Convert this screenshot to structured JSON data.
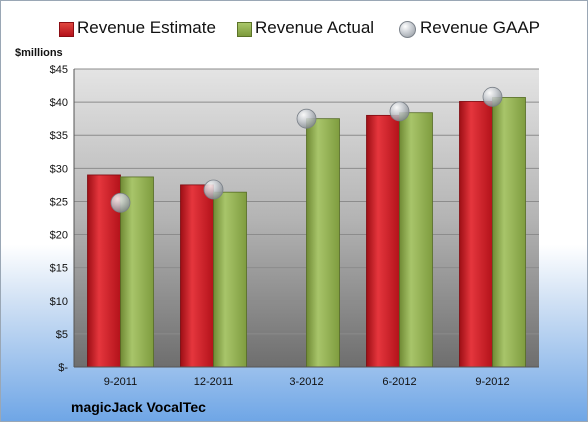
{
  "legend": {
    "estimate_label": "Revenue Estimate",
    "actual_label": "Revenue Actual",
    "gaap_label": "Revenue GAAP"
  },
  "unit_label": "$millions",
  "company": "magicJack VocalTec",
  "colors": {
    "estimate": "#c8161e",
    "actual": "#8aa64a",
    "gaap": "#b9bec4"
  },
  "chart_data": {
    "type": "bar",
    "categories": [
      "9-2011",
      "12-2011",
      "3-2012",
      "6-2012",
      "9-2012"
    ],
    "series": [
      {
        "name": "Revenue Estimate",
        "values": [
          29.0,
          27.5,
          null,
          38.0,
          40.1
        ]
      },
      {
        "name": "Revenue Actual",
        "values": [
          28.7,
          26.4,
          37.5,
          38.4,
          40.7
        ]
      },
      {
        "name": "Revenue GAAP",
        "values": [
          24.8,
          26.8,
          37.5,
          38.6,
          40.8
        ]
      }
    ],
    "ylabel": "$millions",
    "ylim": [
      0,
      45
    ],
    "yticks": [
      0,
      5,
      10,
      15,
      20,
      25,
      30,
      35,
      40,
      45
    ],
    "ytick_labels": [
      "$-",
      "$5",
      "$10",
      "$15",
      "$20",
      "$25",
      "$30",
      "$35",
      "$40",
      "$45"
    ],
    "grid": true,
    "legend_position": "top"
  }
}
